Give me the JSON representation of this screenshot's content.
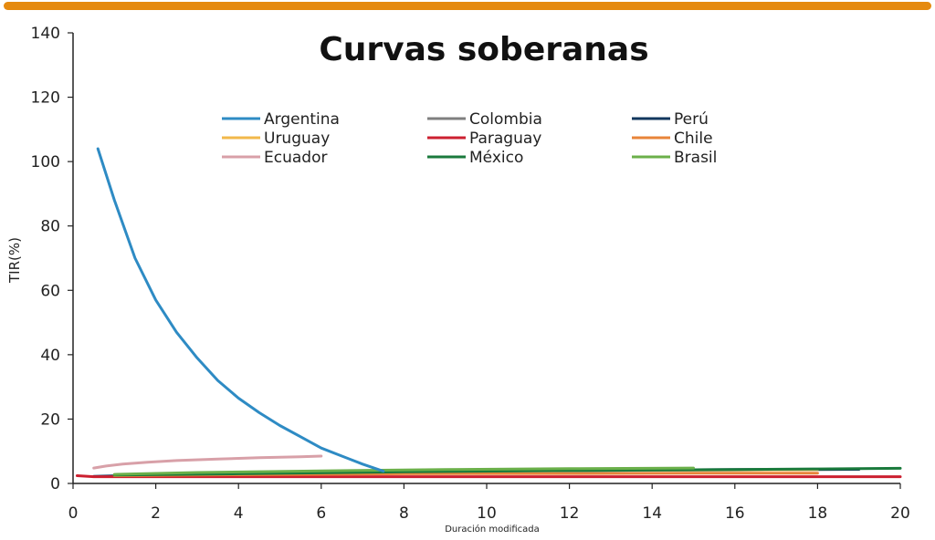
{
  "chart_data": {
    "type": "line",
    "title": "Curvas soberanas",
    "xlabel": "Duración modificada",
    "ylabel": "TIR(%)",
    "xlim": [
      0,
      20
    ],
    "ylim": [
      0,
      140
    ],
    "xticks": [
      0,
      2,
      4,
      6,
      8,
      10,
      12,
      14,
      16,
      18,
      20
    ],
    "yticks": [
      0,
      20,
      40,
      60,
      80,
      100,
      120,
      140
    ],
    "grid": false,
    "legend_position": "top",
    "series": [
      {
        "name": "Argentina",
        "color": "#2e8bc4",
        "x": [
          0.6,
          1,
          1.5,
          2,
          2.5,
          3,
          3.5,
          4,
          4.5,
          5,
          5.5,
          6,
          6.5,
          7,
          7.5
        ],
        "y": [
          104,
          88,
          70,
          57,
          47,
          39,
          32,
          26.5,
          22,
          18,
          14.5,
          11,
          8.5,
          6,
          3.8
        ]
      },
      {
        "name": "Colombia",
        "color": "#7f7f7f",
        "x": [
          1,
          4,
          8,
          12,
          16,
          19
        ],
        "y": [
          2.6,
          3.2,
          3.8,
          4.0,
          4.2,
          4.4
        ]
      },
      {
        "name": "Perú",
        "color": "#12375e",
        "x": [
          0.5,
          2,
          5,
          8,
          10,
          13,
          16,
          19
        ],
        "y": [
          2.2,
          2.6,
          3.2,
          3.6,
          3.9,
          4.1,
          4.3,
          4.4
        ]
      },
      {
        "name": "Uruguay",
        "color": "#f2b84b",
        "x": [
          1,
          3,
          6,
          9,
          12,
          15,
          18
        ],
        "y": [
          2.7,
          3.0,
          3.6,
          3.9,
          4.1,
          4.2,
          4.3
        ]
      },
      {
        "name": "Paraguay",
        "color": "#cc2030",
        "x": [
          0.1,
          0.5,
          2,
          5,
          10,
          15,
          20
        ],
        "y": [
          2.4,
          2.1,
          2.1,
          2.1,
          2.1,
          2.1,
          2.1
        ]
      },
      {
        "name": "Chile",
        "color": "#e8843a",
        "x": [
          1,
          4,
          8,
          12,
          16,
          18
        ],
        "y": [
          2.4,
          2.7,
          3.0,
          3.1,
          3.2,
          3.2
        ]
      },
      {
        "name": "Ecuador",
        "color": "#d8a0a8",
        "x": [
          0.5,
          0.8,
          1.2,
          1.8,
          2.5,
          3.5,
          4.5,
          5.5,
          6
        ],
        "y": [
          4.8,
          5.4,
          6.0,
          6.6,
          7.1,
          7.6,
          8.0,
          8.3,
          8.5
        ]
      },
      {
        "name": "México",
        "color": "#1a7a3c",
        "x": [
          1,
          4,
          8,
          12,
          16,
          18,
          20
        ],
        "y": [
          2.6,
          3.0,
          3.6,
          4.0,
          4.3,
          4.5,
          4.7
        ]
      },
      {
        "name": "Brasil",
        "color": "#6bb04a",
        "x": [
          1,
          3,
          6,
          9,
          12,
          15
        ],
        "y": [
          2.8,
          3.4,
          3.9,
          4.3,
          4.6,
          4.8
        ]
      }
    ]
  }
}
